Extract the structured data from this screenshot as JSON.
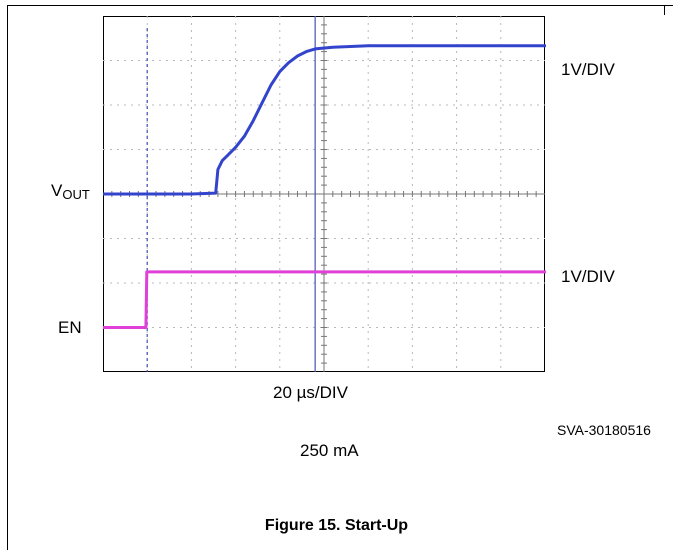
{
  "chart_data": {
    "type": "line",
    "x_scale": "20 µs/DIV",
    "x_divisions": 10,
    "y_divisions": 8,
    "series": [
      {
        "name": "VOUT",
        "scale": "1V/DIV",
        "color": "#3344cc",
        "x_div": [
          0,
          1,
          2,
          2.55,
          2.6,
          2.7,
          2.8,
          3.0,
          3.2,
          3.4,
          3.6,
          3.8,
          4.0,
          4.2,
          4.4,
          4.6,
          4.8,
          5.2,
          6.0,
          7.0,
          8.0,
          9.0,
          10.0
        ],
        "y_div": [
          0,
          0,
          0,
          0.02,
          0.55,
          0.75,
          0.85,
          1.05,
          1.3,
          1.65,
          2.05,
          2.45,
          2.75,
          2.95,
          3.1,
          3.2,
          3.26,
          3.3,
          3.33,
          3.33,
          3.33,
          3.33,
          3.33
        ]
      },
      {
        "name": "EN",
        "scale": "1V/DIV",
        "color": "#e040d8",
        "x_div": [
          0,
          0.97,
          0.99,
          10.0
        ],
        "y_div": [
          -3.0,
          -3.0,
          -1.75,
          -1.75
        ]
      }
    ],
    "trigger_cursor_x_div": 1,
    "marker_cursor_x_div": 4.8
  },
  "labels": {
    "vout_main": "V",
    "vout_sub": "OUT",
    "en": "EN",
    "vout_scale": "1V/DIV",
    "en_scale": "1V/DIV",
    "time_scale": "20 µs/DIV",
    "code": "SVA-30180516",
    "load": "250 mA",
    "caption": "Figure 15. Start-Up"
  }
}
